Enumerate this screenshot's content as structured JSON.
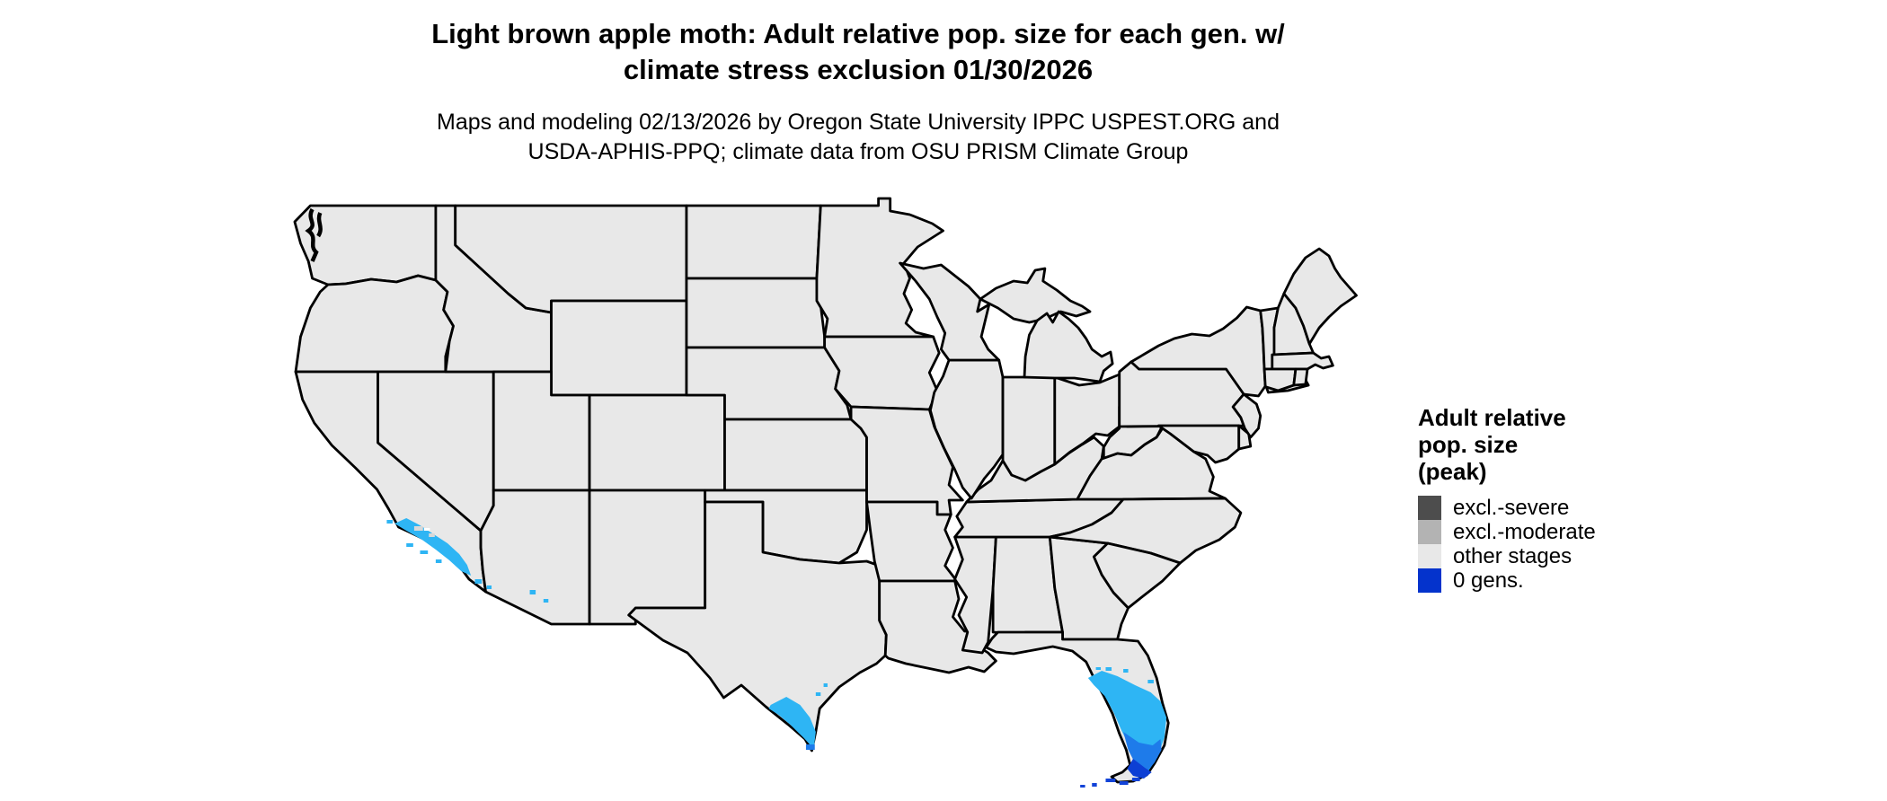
{
  "header": {
    "title_line1": "Light brown apple moth: Adult relative pop. size for each gen. w/",
    "title_line2": "climate stress exclusion 01/30/2026",
    "subtitle_line1": "Maps and modeling 02/13/2026 by Oregon State University IPPC USPEST.ORG and",
    "subtitle_line2": "USDA-APHIS-PPQ; climate data from OSU PRISM Climate Group"
  },
  "legend": {
    "title_line1": "Adult relative",
    "title_line2": "pop. size",
    "title_line3": "(peak)",
    "items": [
      {
        "label": "excl.-severe",
        "color": "#4D4D4D"
      },
      {
        "label": "excl.-moderate",
        "color": "#B3B3B3"
      },
      {
        "label": "other stages",
        "color": "#E8E8E8"
      },
      {
        "label": "0 gens.",
        "color": "#0433CC"
      }
    ]
  },
  "map": {
    "palette": {
      "state_fill": "#E8E8E8",
      "border": "#000000",
      "water": "#FFFFFF",
      "cyan": "#2EB5F4",
      "light_blue": "#1E7BEA",
      "blue": "#1243D8",
      "deep_blue": "#0D3FD4",
      "speck_gray": "#D9D9D9",
      "speck_white": "#FFFFFF"
    },
    "overlays": [
      {
        "id": "socal-coast",
        "label": "Southern California coast",
        "color_key": "cyan"
      },
      {
        "id": "socal-specks",
        "label": "Southern California exclusion specks",
        "color_key": "speck_gray"
      },
      {
        "id": "socal-speck-white",
        "label": "Southern California speck",
        "color_key": "speck_white"
      },
      {
        "id": "arizona-specks",
        "label": "Arizona specks",
        "color_key": "cyan"
      },
      {
        "id": "south-texas",
        "label": "South Texas Rio Grande Valley",
        "color_key": "cyan"
      },
      {
        "id": "south-texas-tip",
        "label": "South Texas tip",
        "color_key": "light_blue"
      },
      {
        "id": "south-florida",
        "label": "South Florida peninsula",
        "color_key": "cyan"
      },
      {
        "id": "south-florida-lower",
        "label": "Lower South Florida",
        "color_key": "light_blue"
      },
      {
        "id": "south-florida-tip",
        "label": "Florida southern tip",
        "color_key": "deep_blue"
      },
      {
        "id": "florida-keys",
        "label": "Florida Keys",
        "color_key": "blue"
      }
    ]
  }
}
